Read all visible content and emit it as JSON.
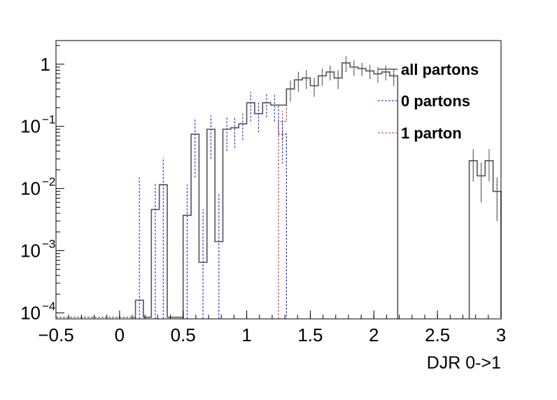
{
  "chart_data": {
    "type": "histogram",
    "title": "",
    "xlabel": "DJR 0->1",
    "ylabel": "",
    "xlim": [
      -0.5,
      3
    ],
    "ylim": [
      8e-05,
      2.4
    ],
    "yscale": "log",
    "grid": false,
    "legend_position": "top-right",
    "bin_width": 0.0625,
    "x_ticks": [
      {
        "value": -0.5,
        "label": "−0.5"
      },
      {
        "value": 0,
        "label": "0"
      },
      {
        "value": 0.5,
        "label": "0.5"
      },
      {
        "value": 1,
        "label": "1"
      },
      {
        "value": 1.5,
        "label": "1.5"
      },
      {
        "value": 2,
        "label": "2"
      },
      {
        "value": 2.5,
        "label": "2.5"
      },
      {
        "value": 3,
        "label": "3"
      }
    ],
    "y_ticks": [
      {
        "value": 0.0001,
        "base": "10",
        "exp": "−4"
      },
      {
        "value": 0.001,
        "base": "10",
        "exp": "−3"
      },
      {
        "value": 0.01,
        "base": "10",
        "exp": "−2"
      },
      {
        "value": 0.1,
        "base": "10",
        "exp": "−1"
      },
      {
        "value": 1,
        "base": "1",
        "exp": ""
      }
    ],
    "series": [
      {
        "name": "all partons",
        "color": "#555555",
        "dash": "solid",
        "bins": [
          {
            "x": 0.125,
            "y": 0.00016,
            "err": 0
          },
          {
            "x": 0.1875,
            "y": 8.5e-05,
            "err": 0
          },
          {
            "x": 0.25,
            "y": 0.0046,
            "err": 0
          },
          {
            "x": 0.3125,
            "y": 0.0115,
            "err": 0
          },
          {
            "x": 0.375,
            "y": 8.5e-05,
            "err": 0
          },
          {
            "x": 0.4375,
            "y": 8.5e-05,
            "err": 0
          },
          {
            "x": 0.5,
            "y": 0.0037,
            "err": 0
          },
          {
            "x": 0.5625,
            "y": 0.075,
            "err": 0
          },
          {
            "x": 0.625,
            "y": 0.00065,
            "err": 0
          },
          {
            "x": 0.6875,
            "y": 0.09,
            "err": 0
          },
          {
            "x": 0.75,
            "y": 0.0014,
            "err": 0
          },
          {
            "x": 0.8125,
            "y": 0.09,
            "err": 0
          },
          {
            "x": 0.875,
            "y": 0.095,
            "err": 0
          },
          {
            "x": 0.9375,
            "y": 0.11,
            "err": 0
          },
          {
            "x": 1.0,
            "y": 0.24,
            "err": 0
          },
          {
            "x": 1.0625,
            "y": 0.16,
            "err": 0
          },
          {
            "x": 1.125,
            "y": 0.24,
            "err": 0
          },
          {
            "x": 1.1875,
            "y": 0.22,
            "err": 0
          },
          {
            "x": 1.25,
            "y": 0.22,
            "err": 0
          },
          {
            "x": 1.3125,
            "y": 0.4,
            "err": 0.15
          },
          {
            "x": 1.375,
            "y": 0.56,
            "err": 0.2
          },
          {
            "x": 1.4375,
            "y": 0.6,
            "err": 0.2
          },
          {
            "x": 1.5,
            "y": 0.45,
            "err": 0.15
          },
          {
            "x": 1.5625,
            "y": 0.65,
            "err": 0.2
          },
          {
            "x": 1.625,
            "y": 0.75,
            "err": 0.2
          },
          {
            "x": 1.6875,
            "y": 0.6,
            "err": 0.2
          },
          {
            "x": 1.75,
            "y": 1.05,
            "err": 0.3
          },
          {
            "x": 1.8125,
            "y": 0.9,
            "err": 0.25
          },
          {
            "x": 1.875,
            "y": 0.85,
            "err": 0.2
          },
          {
            "x": 1.9375,
            "y": 0.78,
            "err": 0.2
          },
          {
            "x": 2.0,
            "y": 0.7,
            "err": 0.2
          },
          {
            "x": 2.0625,
            "y": 0.75,
            "err": 0.2
          },
          {
            "x": 2.125,
            "y": 0.65,
            "err": 0.2
          },
          {
            "x": 2.75,
            "y": 0.028,
            "err": 0.015
          },
          {
            "x": 2.8125,
            "y": 0.016,
            "err": 0.01
          },
          {
            "x": 2.875,
            "y": 0.028,
            "err": 0.015
          },
          {
            "x": 2.9375,
            "y": 0.009,
            "err": 0.006
          }
        ]
      },
      {
        "name": "0 partons",
        "color": "#1a1ad6",
        "dash": "dashed",
        "bins": [
          {
            "x": 0.125,
            "y": 0.00016,
            "err": 0.015
          },
          {
            "x": 0.1875,
            "y": 8.5e-05,
            "err": 0
          },
          {
            "x": 0.25,
            "y": 0.0046,
            "err": 0.008
          },
          {
            "x": 0.3125,
            "y": 0.0115,
            "err": 0.02
          },
          {
            "x": 0.375,
            "y": 8.5e-05,
            "err": 0
          },
          {
            "x": 0.4375,
            "y": 8.5e-05,
            "err": 0
          },
          {
            "x": 0.5,
            "y": 0.0037,
            "err": 0.008
          },
          {
            "x": 0.5625,
            "y": 0.075,
            "err": 0.06
          },
          {
            "x": 0.625,
            "y": 0.00065,
            "err": 0.004
          },
          {
            "x": 0.6875,
            "y": 0.09,
            "err": 0.06
          },
          {
            "x": 0.75,
            "y": 0.0014,
            "err": 0.007
          },
          {
            "x": 0.8125,
            "y": 0.09,
            "err": 0.05
          },
          {
            "x": 0.875,
            "y": 0.095,
            "err": 0.05
          },
          {
            "x": 0.9375,
            "y": 0.11,
            "err": 0.05
          },
          {
            "x": 1.0,
            "y": 0.24,
            "err": 0.12
          },
          {
            "x": 1.0625,
            "y": 0.16,
            "err": 0.08
          },
          {
            "x": 1.125,
            "y": 0.24,
            "err": 0.1
          },
          {
            "x": 1.1875,
            "y": 0.22,
            "err": 0.1
          },
          {
            "x": 1.25,
            "y": 0.075,
            "err": 0.05
          }
        ]
      },
      {
        "name": "1 parton",
        "color": "#c23a3a",
        "dash": "dashed",
        "bins": [
          {
            "x": 1.25,
            "y": 0.12,
            "err": 0.06
          },
          {
            "x": 1.3125,
            "y": 0.4,
            "err": 0.15
          },
          {
            "x": 1.375,
            "y": 0.56,
            "err": 0.2
          },
          {
            "x": 1.4375,
            "y": 0.6,
            "err": 0.2
          },
          {
            "x": 1.5,
            "y": 0.45,
            "err": 0.15
          },
          {
            "x": 1.5625,
            "y": 0.65,
            "err": 0.2
          },
          {
            "x": 1.625,
            "y": 0.75,
            "err": 0.2
          },
          {
            "x": 1.6875,
            "y": 0.6,
            "err": 0.2
          },
          {
            "x": 1.75,
            "y": 1.05,
            "err": 0.3
          },
          {
            "x": 1.8125,
            "y": 0.9,
            "err": 0.25
          },
          {
            "x": 1.875,
            "y": 0.85,
            "err": 0.2
          },
          {
            "x": 1.9375,
            "y": 0.78,
            "err": 0.2
          },
          {
            "x": 2.0,
            "y": 0.7,
            "err": 0.2
          },
          {
            "x": 2.0625,
            "y": 0.75,
            "err": 0.2
          },
          {
            "x": 2.125,
            "y": 0.65,
            "err": 0.2
          },
          {
            "x": 2.75,
            "y": 0.028,
            "err": 0.015
          },
          {
            "x": 2.8125,
            "y": 0.016,
            "err": 0.01
          },
          {
            "x": 2.875,
            "y": 0.028,
            "err": 0.015
          },
          {
            "x": 2.9375,
            "y": 0.009,
            "err": 0.006
          }
        ]
      }
    ]
  }
}
